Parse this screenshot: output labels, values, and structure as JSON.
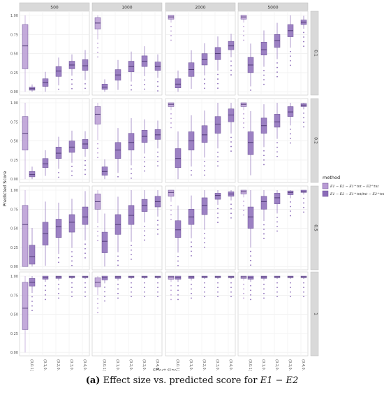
{
  "chart_data": {
    "type": "boxplot",
    "ylabel": "Predicted Score",
    "xlabel": "Effect Size",
    "y_ticks": [
      "0.00",
      "0.25",
      "0.50",
      "0.75",
      "1.00"
    ],
    "ylim": [
      0,
      1
    ],
    "grid": true,
    "columns": [
      "500",
      "1000",
      "2000",
      "5000"
    ],
    "rows": [
      "0.1",
      "0.2",
      "0.5",
      "1"
    ],
    "categories": [
      "(0,0.1]",
      "(0.1,0.2]",
      "(0.2,0.3]",
      "(0.3,0.4]",
      "(0.4,0.5]"
    ],
    "legend": {
      "title": "method",
      "position": "right",
      "entries": [
        {
          "name": "E1 − E2 − E1^tnt − E2^tnt",
          "color": "#b99bd4"
        },
        {
          "name": "E1 − E2 − E1^tnt/tnt − E2^tnt/tnt",
          "color": "#8b6bb8"
        }
      ]
    },
    "panels": [
      [
        {
          "light": [
            [
              0.3,
              0.6,
              0.88
            ]
          ],
          "dark": [
            [
              0.02,
              0.04,
              0.06
            ],
            [
              0.07,
              0.12,
              0.17
            ],
            [
              0.2,
              0.27,
              0.33
            ],
            [
              0.3,
              0.35,
              0.4
            ],
            [
              0.28,
              0.34,
              0.42
            ]
          ]
        },
        {
          "light": [
            [
              0.82,
              0.9,
              0.97
            ]
          ],
          "dark": [
            [
              0.03,
              0.06,
              0.1
            ],
            [
              0.15,
              0.22,
              0.29
            ],
            [
              0.26,
              0.33,
              0.4
            ],
            [
              0.33,
              0.4,
              0.47
            ],
            [
              0.28,
              0.33,
              0.39
            ]
          ]
        },
        {
          "light": [
            [
              0.95,
              0.98,
              1.0
            ]
          ],
          "dark": [
            [
              0.05,
              0.1,
              0.17
            ],
            [
              0.2,
              0.29,
              0.38
            ],
            [
              0.35,
              0.42,
              0.5
            ],
            [
              0.42,
              0.5,
              0.58
            ],
            [
              0.55,
              0.6,
              0.66
            ]
          ]
        },
        {
          "light": [
            [
              0.95,
              0.98,
              1.0
            ]
          ],
          "dark": [
            [
              0.25,
              0.35,
              0.45
            ],
            [
              0.48,
              0.55,
              0.65
            ],
            [
              0.58,
              0.67,
              0.75
            ],
            [
              0.72,
              0.8,
              0.88
            ],
            [
              0.88,
              0.91,
              0.94
            ]
          ]
        }
      ],
      [
        {
          "light": [
            [
              0.38,
              0.6,
              0.82
            ]
          ],
          "dark": [
            [
              0.03,
              0.06,
              0.1
            ],
            [
              0.15,
              0.2,
              0.27
            ],
            [
              0.27,
              0.34,
              0.42
            ],
            [
              0.35,
              0.42,
              0.5
            ],
            [
              0.4,
              0.46,
              0.52
            ]
          ]
        },
        {
          "light": [
            [
              0.72,
              0.85,
              0.95
            ]
          ],
          "dark": [
            [
              0.05,
              0.1,
              0.16
            ],
            [
              0.27,
              0.38,
              0.48
            ],
            [
              0.38,
              0.48,
              0.6
            ],
            [
              0.48,
              0.56,
              0.64
            ],
            [
              0.52,
              0.58,
              0.65
            ]
          ]
        },
        {
          "light": [
            [
              0.95,
              0.98,
              1.0
            ]
          ],
          "dark": [
            [
              0.15,
              0.27,
              0.4
            ],
            [
              0.38,
              0.5,
              0.62
            ],
            [
              0.48,
              0.58,
              0.7
            ],
            [
              0.6,
              0.72,
              0.82
            ],
            [
              0.75,
              0.84,
              0.92
            ]
          ]
        },
        {
          "light": [
            [
              0.95,
              0.98,
              1.0
            ]
          ],
          "dark": [
            [
              0.32,
              0.48,
              0.62
            ],
            [
              0.6,
              0.7,
              0.8
            ],
            [
              0.68,
              0.75,
              0.85
            ],
            [
              0.82,
              0.88,
              0.95
            ],
            [
              0.95,
              0.97,
              0.99
            ]
          ]
        }
      ],
      [
        {
          "light": [
            [
              0.0,
              0.55,
              0.8
            ]
          ],
          "dark": [
            [
              0.03,
              0.13,
              0.28
            ],
            [
              0.28,
              0.43,
              0.58
            ],
            [
              0.38,
              0.52,
              0.62
            ],
            [
              0.45,
              0.58,
              0.68
            ],
            [
              0.55,
              0.65,
              0.78
            ]
          ]
        },
        {
          "light": [
            [
              0.75,
              0.85,
              0.95
            ]
          ],
          "dark": [
            [
              0.18,
              0.33,
              0.45
            ],
            [
              0.42,
              0.55,
              0.68
            ],
            [
              0.55,
              0.67,
              0.8
            ],
            [
              0.72,
              0.8,
              0.88
            ],
            [
              0.78,
              0.85,
              0.92
            ]
          ]
        },
        {
          "light": [
            [
              0.92,
              0.97,
              1.0
            ]
          ],
          "dark": [
            [
              0.38,
              0.48,
              0.6
            ],
            [
              0.55,
              0.65,
              0.75
            ],
            [
              0.68,
              0.8,
              0.9
            ],
            [
              0.88,
              0.93,
              0.96
            ],
            [
              0.92,
              0.95,
              0.98
            ]
          ]
        },
        {
          "light": [
            [
              0.95,
              0.98,
              1.0
            ]
          ],
          "dark": [
            [
              0.5,
              0.65,
              0.78
            ],
            [
              0.75,
              0.85,
              0.92
            ],
            [
              0.82,
              0.9,
              0.96
            ],
            [
              0.94,
              0.97,
              0.99
            ],
            [
              0.97,
              0.98,
              1.0
            ]
          ]
        }
      ],
      [
        {
          "light": [
            [
              0.3,
              0.58,
              0.92
            ]
          ],
          "dark": [
            [
              0.87,
              0.92,
              0.97
            ],
            [
              0.96,
              0.98,
              1.0
            ],
            [
              0.97,
              0.99,
              1.0
            ],
            [
              0.98,
              0.99,
              1.0
            ],
            [
              0.98,
              0.99,
              1.0
            ]
          ]
        },
        {
          "light": [
            [
              0.86,
              0.92,
              0.98
            ]
          ],
          "dark": [
            [
              0.95,
              0.98,
              1.0
            ],
            [
              0.97,
              0.99,
              1.0
            ],
            [
              0.98,
              0.99,
              1.0
            ],
            [
              0.98,
              0.99,
              1.0
            ],
            [
              0.98,
              0.99,
              1.0
            ]
          ]
        },
        {
          "light": [
            [
              0.96,
              0.99,
              1.0
            ]
          ],
          "dark": [
            [
              0.96,
              0.98,
              1.0
            ],
            [
              0.97,
              0.99,
              1.0
            ],
            [
              0.98,
              0.99,
              1.0
            ],
            [
              0.98,
              0.99,
              1.0
            ],
            [
              0.98,
              0.99,
              1.0
            ]
          ]
        },
        {
          "light": [
            [
              0.97,
              0.99,
              1.0
            ]
          ],
          "dark": [
            [
              0.96,
              0.98,
              1.0
            ],
            [
              0.97,
              0.99,
              1.0
            ],
            [
              0.98,
              0.99,
              1.0
            ],
            [
              0.98,
              0.99,
              1.0
            ],
            [
              0.98,
              0.99,
              1.0
            ]
          ]
        }
      ]
    ]
  },
  "caption": {
    "label": "(a)",
    "text": "Effect size vs. predicted score for",
    "math": "E1 − E2"
  }
}
